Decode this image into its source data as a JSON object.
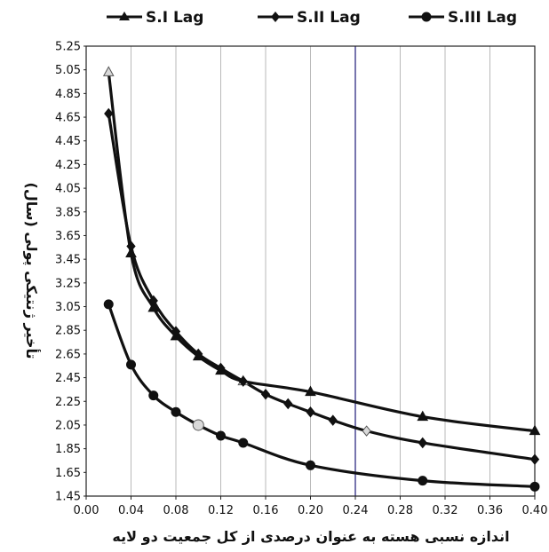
{
  "chart_data": {
    "type": "line",
    "xlabel": "اندازه نسبی هسته به عنوان درصدی از کل جمعیت دو لایه",
    "ylabel": "تأخیر ژنتیکی پولی (سال)",
    "xlim": [
      0.0,
      0.4
    ],
    "ylim": [
      1.45,
      5.25
    ],
    "x_ticks": [
      "0.00",
      "0.04",
      "0.08",
      "0.12",
      "0.16",
      "0.20",
      "0.24",
      "0.28",
      "0.32",
      "0.36",
      "0.40"
    ],
    "y_ticks": [
      "1.45",
      "1.65",
      "1.85",
      "2.05",
      "2.25",
      "2.45",
      "2.65",
      "2.85",
      "3.05",
      "3.25",
      "3.45",
      "3.65",
      "3.85",
      "4.05",
      "4.25",
      "4.45",
      "4.65",
      "4.85",
      "5.05",
      "5.25"
    ],
    "grid": "vertical",
    "highlight_x": 0.24,
    "legend_position": "top",
    "series": [
      {
        "name": "S.I Lag",
        "marker": "triangle",
        "color": "#111111",
        "x": [
          0.02,
          0.04,
          0.06,
          0.08,
          0.1,
          0.12,
          0.14,
          0.2,
          0.3,
          0.4
        ],
        "y": [
          5.03,
          3.5,
          3.04,
          2.8,
          2.63,
          2.51,
          2.42,
          2.33,
          2.12,
          2.0
        ],
        "hollow_index": [
          0,
          6
        ]
      },
      {
        "name": "S.II Lag",
        "marker": "diamond",
        "color": "#111111",
        "x": [
          0.02,
          0.04,
          0.06,
          0.08,
          0.1,
          0.12,
          0.14,
          0.16,
          0.18,
          0.2,
          0.22,
          0.25,
          0.3,
          0.4
        ],
        "y": [
          4.68,
          3.56,
          3.1,
          2.84,
          2.65,
          2.53,
          2.42,
          2.31,
          2.23,
          2.16,
          2.09,
          2.0,
          1.9,
          1.76
        ],
        "hollow_index": [
          11
        ]
      },
      {
        "name": "S.III Lag",
        "marker": "circle",
        "color": "#111111",
        "x": [
          0.02,
          0.04,
          0.06,
          0.08,
          0.1,
          0.12,
          0.14,
          0.2,
          0.3,
          0.4
        ],
        "y": [
          3.07,
          2.56,
          2.3,
          2.16,
          2.05,
          1.96,
          1.9,
          1.71,
          1.58,
          1.53
        ],
        "hollow_index": [
          4
        ]
      }
    ]
  }
}
